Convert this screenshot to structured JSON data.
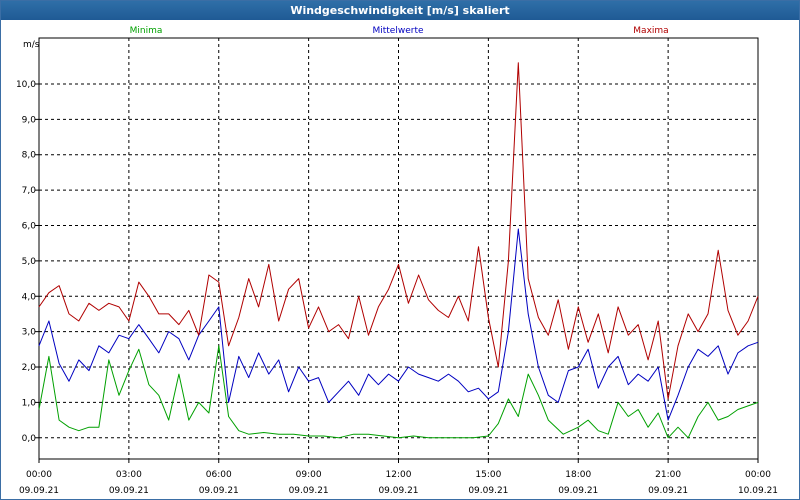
{
  "window": {
    "title": "Windgeschwindigkeit [m/s] skaliert"
  },
  "legend": {
    "min_label": "Minima",
    "mean_label": "Mittelwerte",
    "max_label": "Maxima"
  },
  "chart_data": {
    "type": "line",
    "title": "Windgeschwindigkeit [m/s] skaliert",
    "ylabel": "m/s",
    "ylim": [
      -0.6,
      11.3
    ],
    "xlim_hours": [
      0,
      24
    ],
    "y_ticks": [
      "0,0",
      "1,0",
      "2,0",
      "3,0",
      "4,0",
      "5,0",
      "6,0",
      "7,0",
      "8,0",
      "9,0",
      "10,0"
    ],
    "x_ticks": [
      {
        "time": "00:00",
        "date": "09.09.21"
      },
      {
        "time": "03:00",
        "date": "09.09.21"
      },
      {
        "time": "06:00",
        "date": "09.09.21"
      },
      {
        "time": "09:00",
        "date": "09.09.21"
      },
      {
        "time": "12:00",
        "date": "09.09.21"
      },
      {
        "time": "15:00",
        "date": "09.09.21"
      },
      {
        "time": "18:00",
        "date": "09.09.21"
      },
      {
        "time": "21:00",
        "date": "09.09.21"
      },
      {
        "time": "00:00",
        "date": "10.09.21"
      }
    ],
    "grid": true,
    "series": [
      {
        "name": "Minima",
        "color": "#00a000",
        "points": [
          [
            0.0,
            0.8
          ],
          [
            0.33,
            2.3
          ],
          [
            0.67,
            0.5
          ],
          [
            1.0,
            0.3
          ],
          [
            1.33,
            0.2
          ],
          [
            1.67,
            0.3
          ],
          [
            2.0,
            0.3
          ],
          [
            2.33,
            2.2
          ],
          [
            2.67,
            1.2
          ],
          [
            3.0,
            1.9
          ],
          [
            3.33,
            2.5
          ],
          [
            3.67,
            1.5
          ],
          [
            4.0,
            1.2
          ],
          [
            4.33,
            0.5
          ],
          [
            4.67,
            1.8
          ],
          [
            5.0,
            0.5
          ],
          [
            5.33,
            1.0
          ],
          [
            5.67,
            0.7
          ],
          [
            6.0,
            2.6
          ],
          [
            6.33,
            0.6
          ],
          [
            6.67,
            0.2
          ],
          [
            7.0,
            0.1
          ],
          [
            7.5,
            0.15
          ],
          [
            8.0,
            0.1
          ],
          [
            8.5,
            0.1
          ],
          [
            9.0,
            0.05
          ],
          [
            9.5,
            0.05
          ],
          [
            10.0,
            0.0
          ],
          [
            10.5,
            0.1
          ],
          [
            11.0,
            0.1
          ],
          [
            11.5,
            0.05
          ],
          [
            12.0,
            0.0
          ],
          [
            12.5,
            0.05
          ],
          [
            13.0,
            0.0
          ],
          [
            13.5,
            0.0
          ],
          [
            14.0,
            0.0
          ],
          [
            14.5,
            0.0
          ],
          [
            15.0,
            0.05
          ],
          [
            15.33,
            0.4
          ],
          [
            15.67,
            1.1
          ],
          [
            16.0,
            0.6
          ],
          [
            16.33,
            1.8
          ],
          [
            16.67,
            1.2
          ],
          [
            17.0,
            0.5
          ],
          [
            17.5,
            0.1
          ],
          [
            18.0,
            0.3
          ],
          [
            18.33,
            0.5
          ],
          [
            18.67,
            0.2
          ],
          [
            19.0,
            0.1
          ],
          [
            19.33,
            1.0
          ],
          [
            19.67,
            0.6
          ],
          [
            20.0,
            0.8
          ],
          [
            20.33,
            0.3
          ],
          [
            20.67,
            0.7
          ],
          [
            21.0,
            0.0
          ],
          [
            21.33,
            0.3
          ],
          [
            21.67,
            0.0
          ],
          [
            22.0,
            0.6
          ],
          [
            22.33,
            1.0
          ],
          [
            22.67,
            0.5
          ],
          [
            23.0,
            0.6
          ],
          [
            23.33,
            0.8
          ],
          [
            23.67,
            0.9
          ],
          [
            24.0,
            1.0
          ]
        ]
      },
      {
        "name": "Mittelwerte",
        "color": "#0000c0",
        "points": [
          [
            0.0,
            2.6
          ],
          [
            0.33,
            3.3
          ],
          [
            0.67,
            2.1
          ],
          [
            1.0,
            1.6
          ],
          [
            1.33,
            2.2
          ],
          [
            1.67,
            1.9
          ],
          [
            2.0,
            2.6
          ],
          [
            2.33,
            2.4
          ],
          [
            2.67,
            2.9
          ],
          [
            3.0,
            2.8
          ],
          [
            3.33,
            3.2
          ],
          [
            3.67,
            2.8
          ],
          [
            4.0,
            2.4
          ],
          [
            4.33,
            3.0
          ],
          [
            4.67,
            2.8
          ],
          [
            5.0,
            2.2
          ],
          [
            5.33,
            2.9
          ],
          [
            5.67,
            3.3
          ],
          [
            6.0,
            3.7
          ],
          [
            6.33,
            1.0
          ],
          [
            6.67,
            2.3
          ],
          [
            7.0,
            1.7
          ],
          [
            7.33,
            2.4
          ],
          [
            7.67,
            1.8
          ],
          [
            8.0,
            2.2
          ],
          [
            8.33,
            1.3
          ],
          [
            8.67,
            2.0
          ],
          [
            9.0,
            1.6
          ],
          [
            9.33,
            1.7
          ],
          [
            9.67,
            1.0
          ],
          [
            10.0,
            1.3
          ],
          [
            10.33,
            1.6
          ],
          [
            10.67,
            1.2
          ],
          [
            11.0,
            1.8
          ],
          [
            11.33,
            1.5
          ],
          [
            11.67,
            1.8
          ],
          [
            12.0,
            1.6
          ],
          [
            12.33,
            2.0
          ],
          [
            12.67,
            1.8
          ],
          [
            13.0,
            1.7
          ],
          [
            13.33,
            1.6
          ],
          [
            13.67,
            1.8
          ],
          [
            14.0,
            1.6
          ],
          [
            14.33,
            1.3
          ],
          [
            14.67,
            1.4
          ],
          [
            15.0,
            1.1
          ],
          [
            15.33,
            1.3
          ],
          [
            15.67,
            3.0
          ],
          [
            16.0,
            5.9
          ],
          [
            16.33,
            3.5
          ],
          [
            16.67,
            2.0
          ],
          [
            17.0,
            1.2
          ],
          [
            17.33,
            1.0
          ],
          [
            17.67,
            1.9
          ],
          [
            18.0,
            2.0
          ],
          [
            18.33,
            2.5
          ],
          [
            18.67,
            1.4
          ],
          [
            19.0,
            2.0
          ],
          [
            19.33,
            2.3
          ],
          [
            19.67,
            1.5
          ],
          [
            20.0,
            1.8
          ],
          [
            20.33,
            1.6
          ],
          [
            20.67,
            2.0
          ],
          [
            21.0,
            0.5
          ],
          [
            21.33,
            1.2
          ],
          [
            21.67,
            2.0
          ],
          [
            22.0,
            2.5
          ],
          [
            22.33,
            2.3
          ],
          [
            22.67,
            2.6
          ],
          [
            23.0,
            1.8
          ],
          [
            23.33,
            2.4
          ],
          [
            23.67,
            2.6
          ],
          [
            24.0,
            2.7
          ]
        ]
      },
      {
        "name": "Maxima",
        "color": "#b00000",
        "points": [
          [
            0.0,
            3.7
          ],
          [
            0.33,
            4.1
          ],
          [
            0.67,
            4.3
          ],
          [
            1.0,
            3.5
          ],
          [
            1.33,
            3.3
          ],
          [
            1.67,
            3.8
          ],
          [
            2.0,
            3.6
          ],
          [
            2.33,
            3.8
          ],
          [
            2.67,
            3.7
          ],
          [
            3.0,
            3.3
          ],
          [
            3.33,
            4.4
          ],
          [
            3.67,
            4.0
          ],
          [
            4.0,
            3.5
          ],
          [
            4.33,
            3.5
          ],
          [
            4.67,
            3.2
          ],
          [
            5.0,
            3.6
          ],
          [
            5.33,
            2.9
          ],
          [
            5.67,
            4.6
          ],
          [
            6.0,
            4.4
          ],
          [
            6.33,
            2.6
          ],
          [
            6.67,
            3.4
          ],
          [
            7.0,
            4.5
          ],
          [
            7.33,
            3.7
          ],
          [
            7.67,
            4.9
          ],
          [
            8.0,
            3.3
          ],
          [
            8.33,
            4.2
          ],
          [
            8.67,
            4.5
          ],
          [
            9.0,
            3.1
          ],
          [
            9.33,
            3.7
          ],
          [
            9.67,
            3.0
          ],
          [
            10.0,
            3.2
          ],
          [
            10.33,
            2.8
          ],
          [
            10.67,
            4.0
          ],
          [
            11.0,
            2.9
          ],
          [
            11.33,
            3.7
          ],
          [
            11.67,
            4.2
          ],
          [
            12.0,
            4.9
          ],
          [
            12.33,
            3.8
          ],
          [
            12.67,
            4.6
          ],
          [
            13.0,
            3.9
          ],
          [
            13.33,
            3.6
          ],
          [
            13.67,
            3.4
          ],
          [
            14.0,
            4.0
          ],
          [
            14.33,
            3.3
          ],
          [
            14.67,
            5.4
          ],
          [
            15.0,
            3.4
          ],
          [
            15.33,
            2.0
          ],
          [
            15.67,
            5.0
          ],
          [
            16.0,
            10.6
          ],
          [
            16.33,
            4.5
          ],
          [
            16.67,
            3.4
          ],
          [
            17.0,
            2.9
          ],
          [
            17.33,
            3.9
          ],
          [
            17.67,
            2.5
          ],
          [
            18.0,
            3.7
          ],
          [
            18.33,
            2.7
          ],
          [
            18.67,
            3.5
          ],
          [
            19.0,
            2.4
          ],
          [
            19.33,
            3.7
          ],
          [
            19.67,
            2.9
          ],
          [
            20.0,
            3.2
          ],
          [
            20.33,
            2.2
          ],
          [
            20.67,
            3.3
          ],
          [
            21.0,
            1.1
          ],
          [
            21.33,
            2.6
          ],
          [
            21.67,
            3.5
          ],
          [
            22.0,
            3.0
          ],
          [
            22.33,
            3.5
          ],
          [
            22.67,
            5.3
          ],
          [
            23.0,
            3.6
          ],
          [
            23.33,
            2.9
          ],
          [
            23.67,
            3.3
          ],
          [
            24.0,
            4.0
          ]
        ]
      }
    ]
  }
}
